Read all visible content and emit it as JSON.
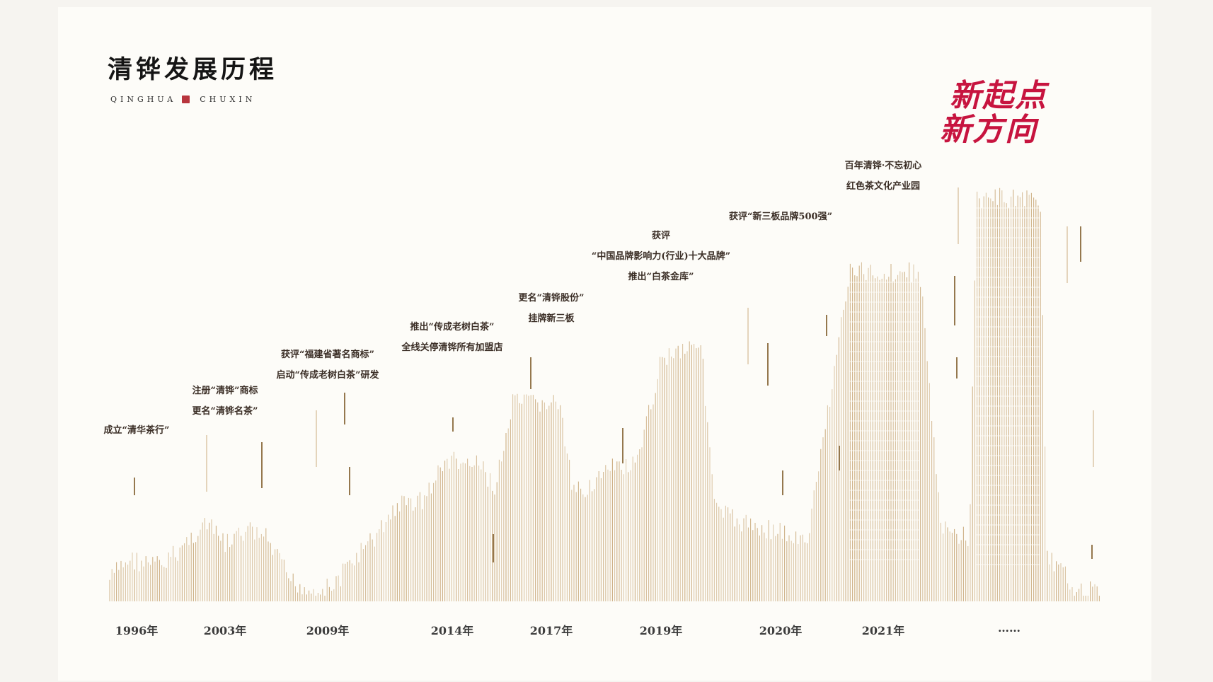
{
  "header": {
    "title": "清铧发展历程",
    "subtitle_left": "QINGHUA",
    "subtitle_right": "CHUXIN"
  },
  "slogan": [
    "新起点",
    "新方向"
  ],
  "timeline": [
    {
      "year": "1996年",
      "events": [
        "成立“清华茶行”"
      ]
    },
    {
      "year": "2003年",
      "events": [
        "注册“清铧”商标",
        "更名“清铧名茶”"
      ]
    },
    {
      "year": "2009年",
      "events": [
        "获评“福建省著名商标”",
        "启动“传成老树白茶”研发"
      ]
    },
    {
      "year": "2014年",
      "events": [
        "推出“传成老树白茶”",
        "全线关停清铧所有加盟店"
      ]
    },
    {
      "year": "2017年",
      "events": [
        "更名“清铧股份”",
        "挂牌新三板"
      ]
    },
    {
      "year": "2019年",
      "events": [
        "获评",
        "“中国品牌影响力(行业)十大品牌”",
        "推出“白茶金库”"
      ]
    },
    {
      "year": "2020年",
      "events": [
        "获评“新三板品牌500强”"
      ]
    },
    {
      "year": "2021年",
      "events": [
        "百年清铧·不忘初心",
        "红色茶文化产业园"
      ]
    },
    {
      "year": "……",
      "events": []
    }
  ],
  "colors": {
    "line_gold": "#c9a97a",
    "line_dark": "#8a6a3c",
    "slogan_red": "#c7143f",
    "seal_red": "#b8353d"
  }
}
